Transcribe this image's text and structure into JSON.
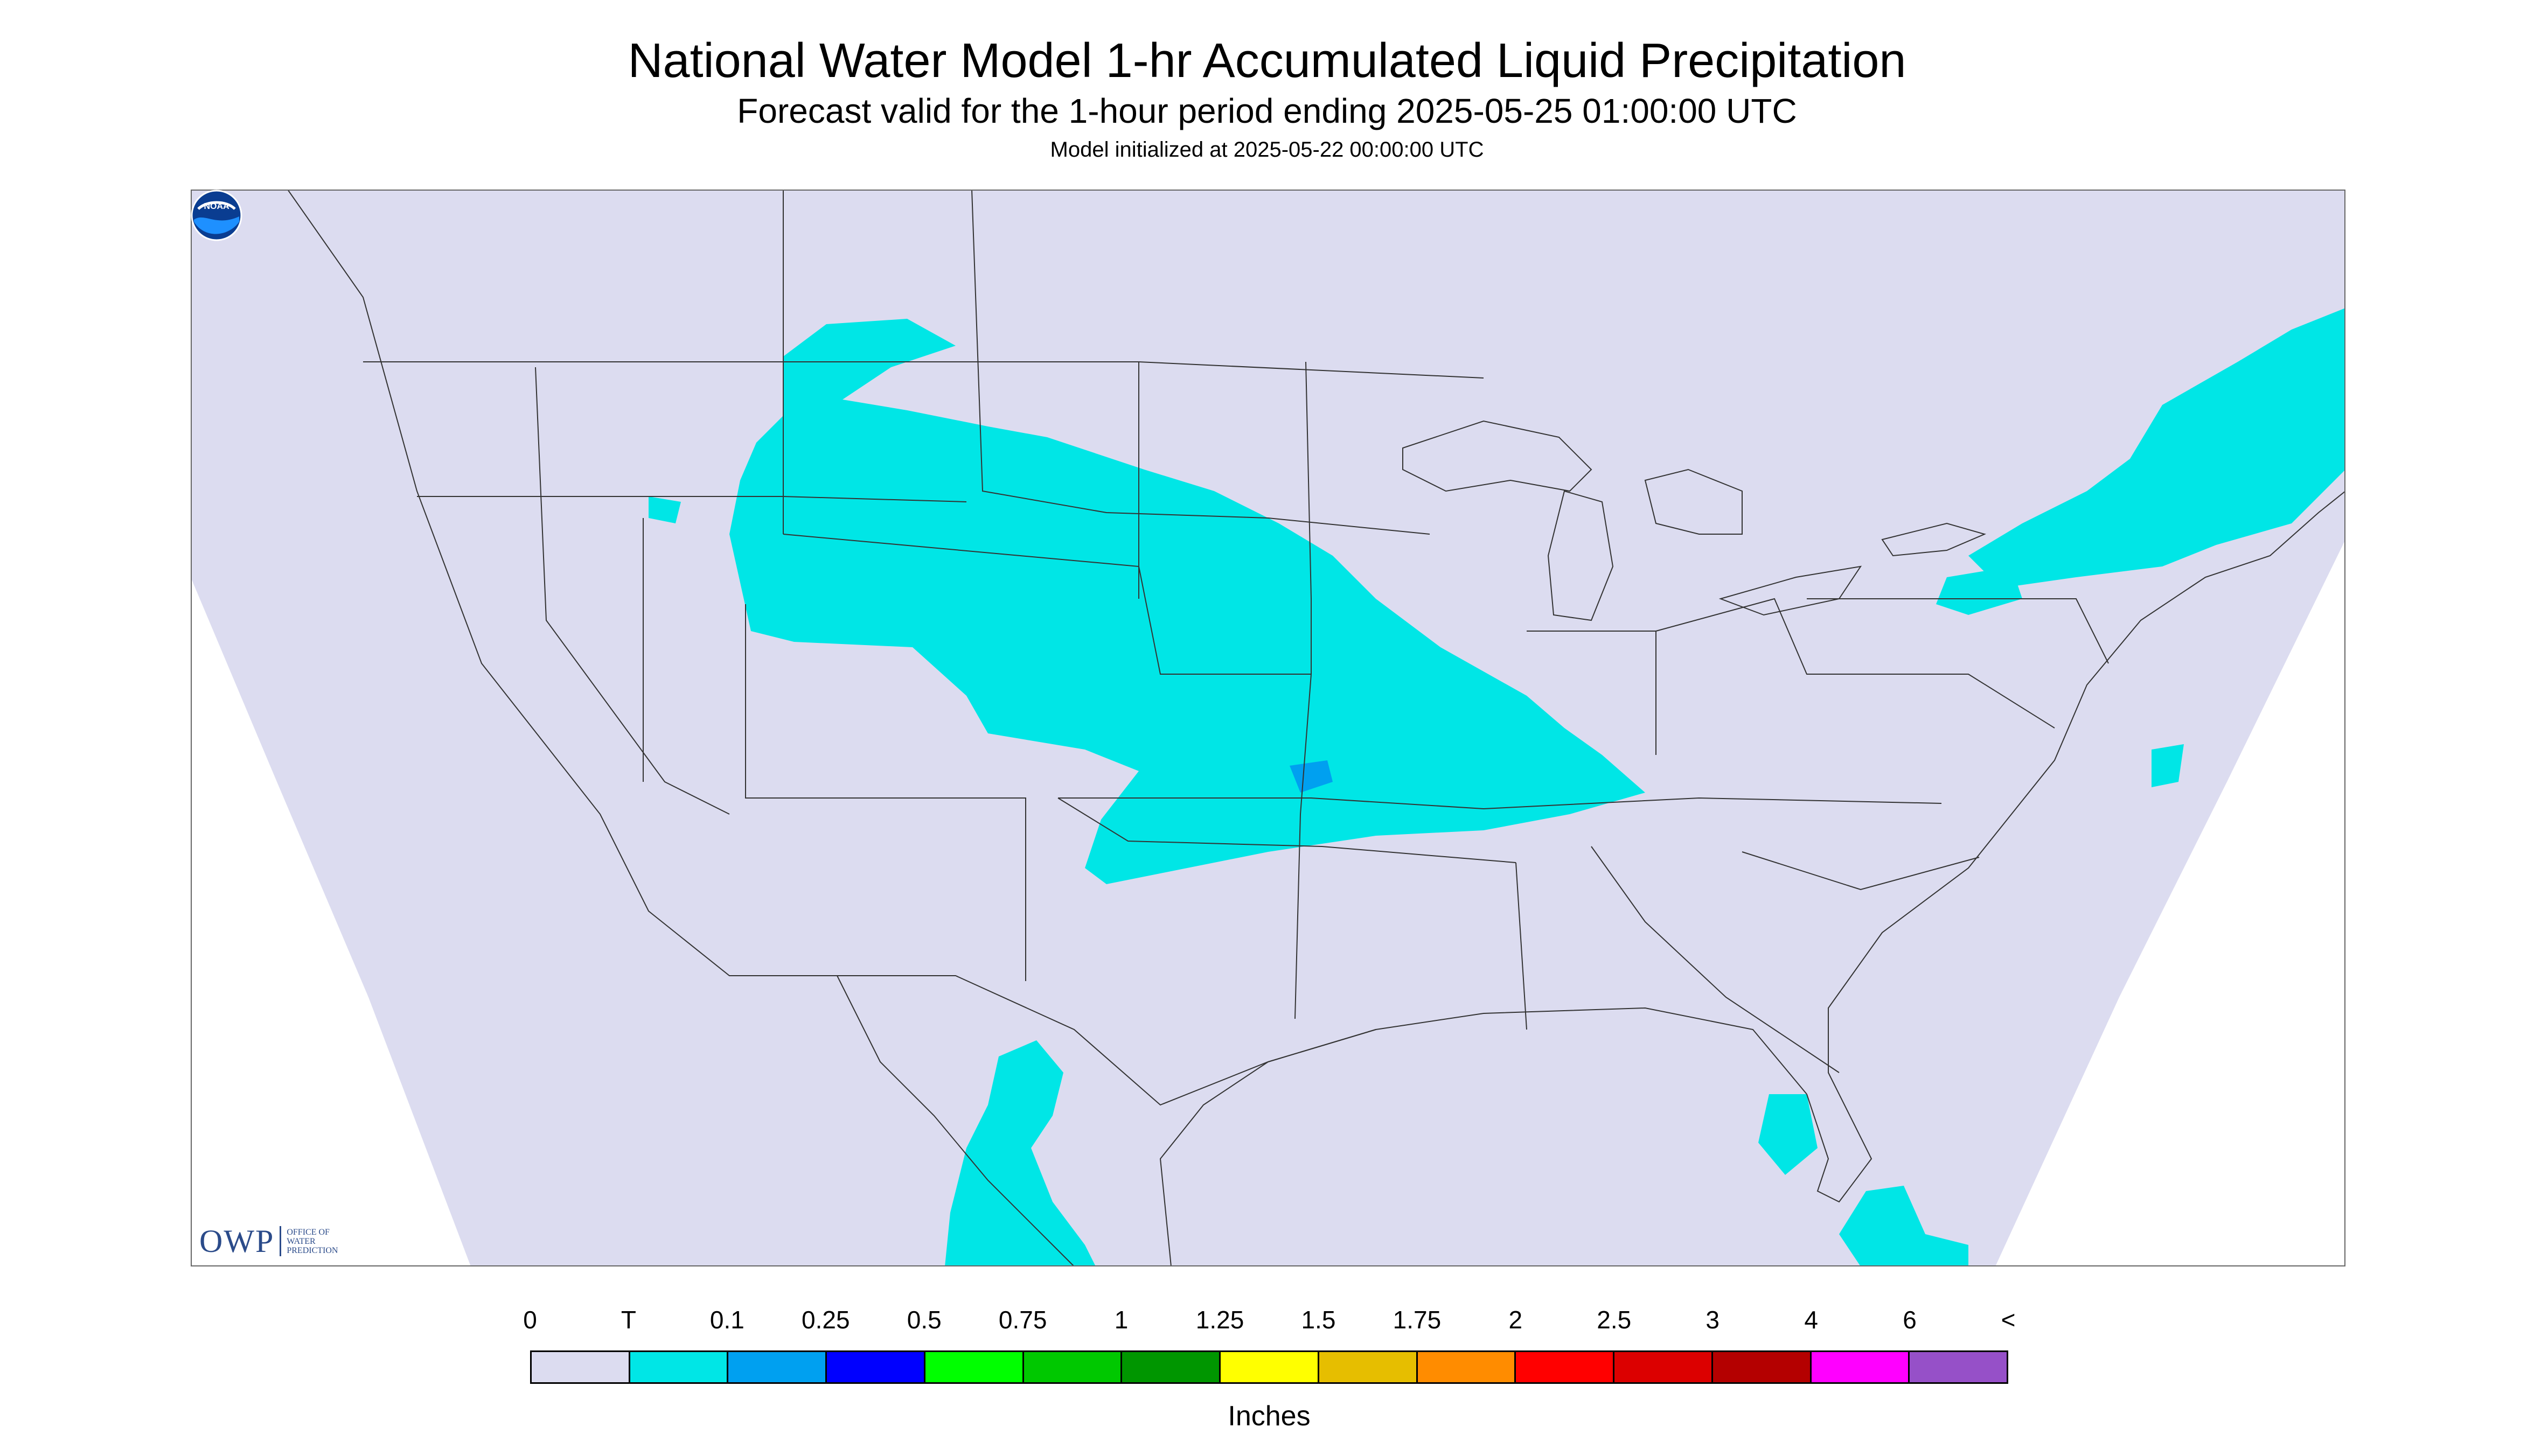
{
  "header": {
    "title": "National Water Model 1-hr Accumulated Liquid Precipitation",
    "subtitle": "Forecast valid for the 1-hour period ending 2025-05-25 01:00:00 UTC",
    "init": "Model initialized at 2025-05-22 00:00:00 UTC"
  },
  "logos": {
    "owp_letters": "OWP",
    "owp_sub": [
      "OFFICE OF",
      "WATER",
      "PREDICTION"
    ],
    "noaa": "NOAA"
  },
  "colors": {
    "map_background": "#dcdcf0",
    "outside_domain": "#ffffff",
    "boundaries": "#333333",
    "precip_trace": "#00e6e6",
    "precip_0_1": "#00a0f0"
  },
  "legend": {
    "labels": [
      "0",
      "T",
      "0.1",
      "0.25",
      "0.5",
      "0.75",
      "1",
      "1.25",
      "1.5",
      "1.75",
      "2",
      "2.5",
      "3",
      "4",
      "6",
      "<"
    ],
    "colors": [
      "#dcdcf0",
      "#00e6e6",
      "#00a0f0",
      "#0000ff",
      "#00ff00",
      "#00c800",
      "#009600",
      "#ffff00",
      "#e6be00",
      "#ff8c00",
      "#ff0000",
      "#dc0000",
      "#b40000",
      "#ff00ff",
      "#9650c8"
    ],
    "unit": "Inches"
  }
}
